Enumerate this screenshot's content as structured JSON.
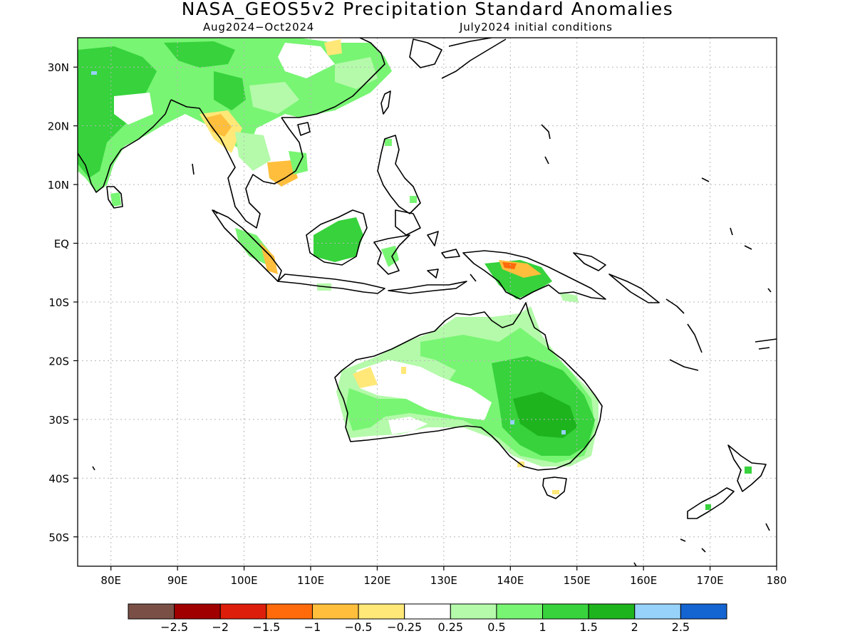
{
  "title": "NASA_GEOS5v2 Precipitation Standard Anomalies",
  "subtitle_left": "Aug2024−Oct2024",
  "subtitle_right": "July2024 initial conditions",
  "map": {
    "lon_range": [
      75,
      180
    ],
    "lat_range": [
      -55,
      35
    ],
    "lon_ticks": [
      {
        "value": 80,
        "label": "80E"
      },
      {
        "value": 90,
        "label": "90E"
      },
      {
        "value": 100,
        "label": "100E"
      },
      {
        "value": 110,
        "label": "110E"
      },
      {
        "value": 120,
        "label": "120E"
      },
      {
        "value": 130,
        "label": "130E"
      },
      {
        "value": 140,
        "label": "140E"
      },
      {
        "value": 150,
        "label": "150E"
      },
      {
        "value": 160,
        "label": "160E"
      },
      {
        "value": 170,
        "label": "170E"
      },
      {
        "value": 180,
        "label": "180"
      }
    ],
    "lat_ticks": [
      {
        "value": 30,
        "label": "30N"
      },
      {
        "value": 20,
        "label": "20N"
      },
      {
        "value": 10,
        "label": "10N"
      },
      {
        "value": 0,
        "label": "EQ"
      },
      {
        "value": -10,
        "label": "10S"
      },
      {
        "value": -20,
        "label": "20S"
      },
      {
        "value": -30,
        "label": "30S"
      },
      {
        "value": -40,
        "label": "40S"
      },
      {
        "value": -50,
        "label": "50S"
      }
    ],
    "grid": true,
    "coastline_color": "#000000"
  },
  "colorbar": {
    "colors": [
      "#7a5046",
      "#a00000",
      "#dc1e0a",
      "#ff6a0a",
      "#ffbe3c",
      "#ffe878",
      "#ffffff",
      "#b4faaa",
      "#78f573",
      "#37d23c",
      "#1eb41e",
      "#96d2fa",
      "#1464d2"
    ],
    "labels": [
      "−2.5",
      "−2",
      "−1.5",
      "−1",
      "−0.5",
      "−0.25",
      "0.25",
      "0.5",
      "1",
      "1.5",
      "2",
      "2.5"
    ]
  },
  "fill_colors": {
    "light_green": "#b4faaa",
    "green": "#78f573",
    "dark_green": "#37d23c",
    "darker_green": "#1eb41e",
    "light_blue": "#96d2fa",
    "pale_yellow": "#ffe878",
    "yellow_orange": "#ffbe3c",
    "orange": "#ff6a0a"
  }
}
